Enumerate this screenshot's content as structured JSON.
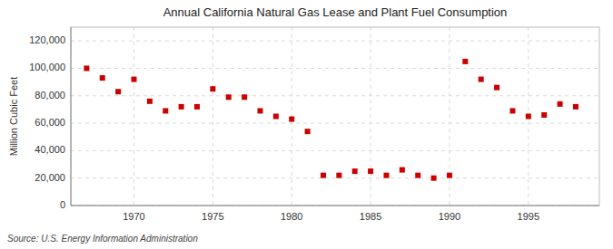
{
  "chart_data": {
    "type": "scatter",
    "title": "Annual California Natural Gas Lease and Plant Fuel Consumption",
    "ylabel": "Million Cubic Feet",
    "source": "Source: U.S. Energy Information Administration",
    "x": [
      1967,
      1968,
      1969,
      1970,
      1971,
      1972,
      1973,
      1974,
      1975,
      1976,
      1977,
      1978,
      1979,
      1980,
      1981,
      1982,
      1983,
      1984,
      1985,
      1986,
      1987,
      1988,
      1989,
      1990,
      1991,
      1992,
      1993,
      1994,
      1995,
      1996,
      1997,
      1998
    ],
    "values": [
      100000,
      93000,
      83000,
      92000,
      76000,
      69000,
      72000,
      72000,
      85000,
      79000,
      79000,
      69000,
      65000,
      63000,
      54000,
      22000,
      22000,
      25000,
      25000,
      22000,
      26000,
      22000,
      20000,
      22000,
      105000,
      92000,
      86000,
      69000,
      65000,
      66000,
      74000,
      72000
    ],
    "color": "#cc0000",
    "marker": "square",
    "xlim": [
      1966.0,
      1999.5
    ],
    "ylim": [
      0,
      130000
    ],
    "xticks": [
      1970,
      1975,
      1980,
      1985,
      1990,
      1995
    ],
    "yticks": [
      0,
      {
        "value": 20000,
        "label": "20,000"
      },
      {
        "value": 40000,
        "label": "40,000"
      },
      {
        "value": 60000,
        "label": "60,000"
      },
      {
        "value": 80000,
        "label": "80,000"
      },
      {
        "value": 100000,
        "label": "100,000"
      },
      {
        "value": 120000,
        "label": "120,000"
      }
    ],
    "grid": true
  }
}
